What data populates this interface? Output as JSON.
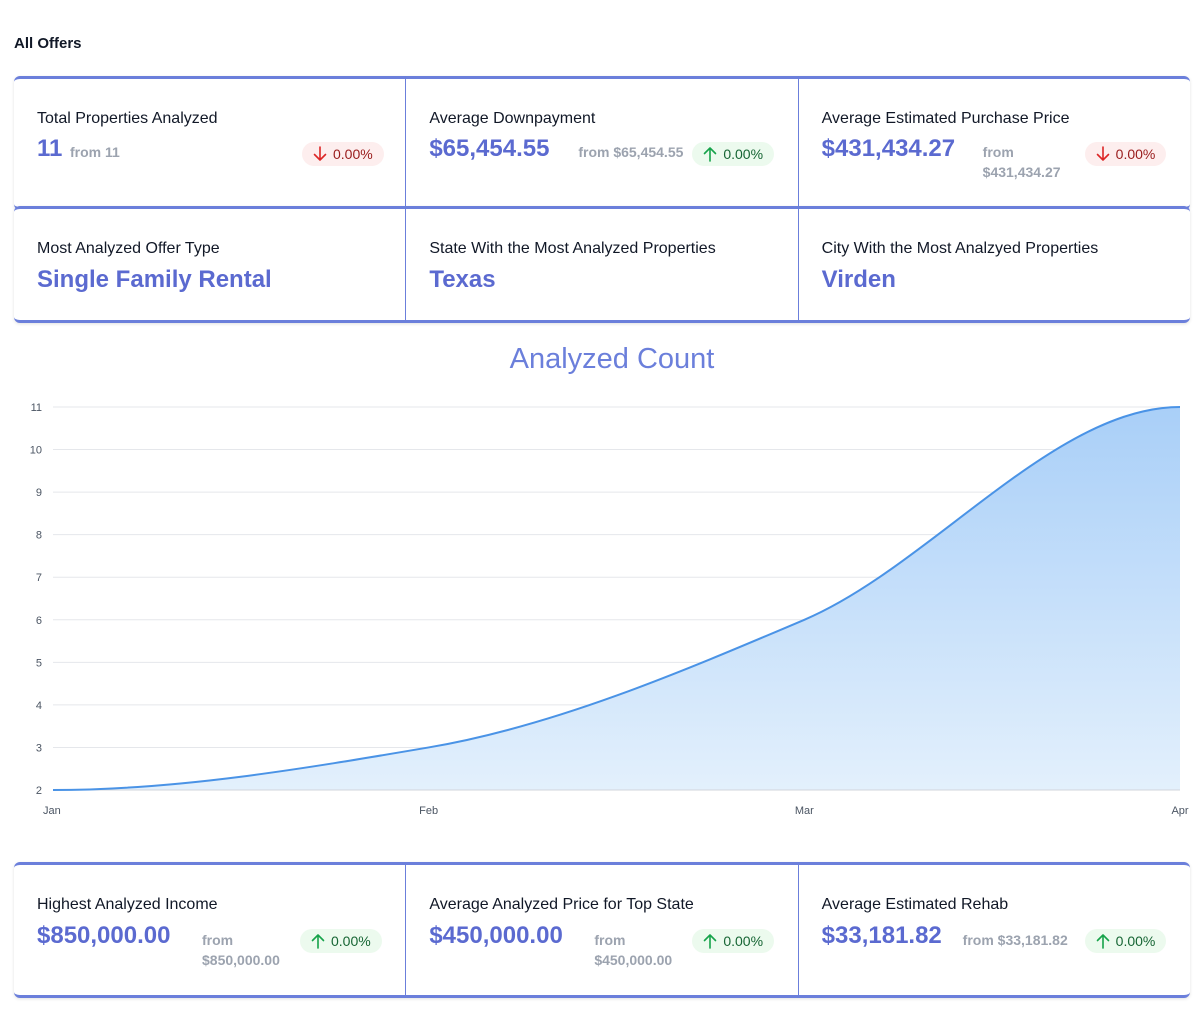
{
  "page_title": "All Offers",
  "top_stats": [
    {
      "label": "Total Properties Analyzed",
      "value": "11",
      "from": "from 11",
      "change": "0.00%",
      "direction": "down"
    },
    {
      "label": "Average Downpayment",
      "value": "$65,454.55",
      "from": "from $65,454.55",
      "change": "0.00%",
      "direction": "up"
    },
    {
      "label": "Average Estimated Purchase Price",
      "value": "$431,434.27",
      "from_line1": "from",
      "from_line2": "$431,434.27",
      "change": "0.00%",
      "direction": "down"
    }
  ],
  "mid_stats": [
    {
      "label": "Most Analyzed Offer Type",
      "value": "Single Family Rental"
    },
    {
      "label": "State With the Most Analyzed Properties",
      "value": "Texas"
    },
    {
      "label": "City With the Most Analzyed Properties",
      "value": "Virden"
    }
  ],
  "bottom_stats": [
    {
      "label": "Highest Analyzed Income",
      "value": "$850,000.00",
      "from_line1": "from",
      "from_line2": "$850,000.00",
      "change": "0.00%",
      "direction": "up"
    },
    {
      "label": "Average Analyzed Price for Top State",
      "value": "$450,000.00",
      "from_line1": "from",
      "from_line2": "$450,000.00",
      "change": "0.00%",
      "direction": "up"
    },
    {
      "label": "Average Estimated Rehab",
      "value": "$33,181.82",
      "from": "from $33,181.82",
      "change": "0.00%",
      "direction": "up"
    }
  ],
  "colors": {
    "accent": "#6b7fdb",
    "value_text": "#5b6ad0",
    "line": "#4a93e6",
    "area_top": "#a9cff8",
    "area_bottom": "#e3f0fc",
    "badge_up_bg": "#ecfaee",
    "badge_up_text": "#166534",
    "badge_down_bg": "#fdeeee",
    "badge_down_text": "#991b1b"
  },
  "chart_data": {
    "type": "area",
    "title": "Analyzed Count",
    "categories": [
      "Jan",
      "Feb",
      "Mar",
      "Apr"
    ],
    "series": [
      {
        "values": [
          2,
          3,
          6,
          11
        ]
      }
    ],
    "yticks": [
      2,
      3,
      4,
      5,
      6,
      7,
      8,
      9,
      10,
      11
    ],
    "ylim": [
      2,
      11
    ],
    "grid": true,
    "legend": "none"
  }
}
